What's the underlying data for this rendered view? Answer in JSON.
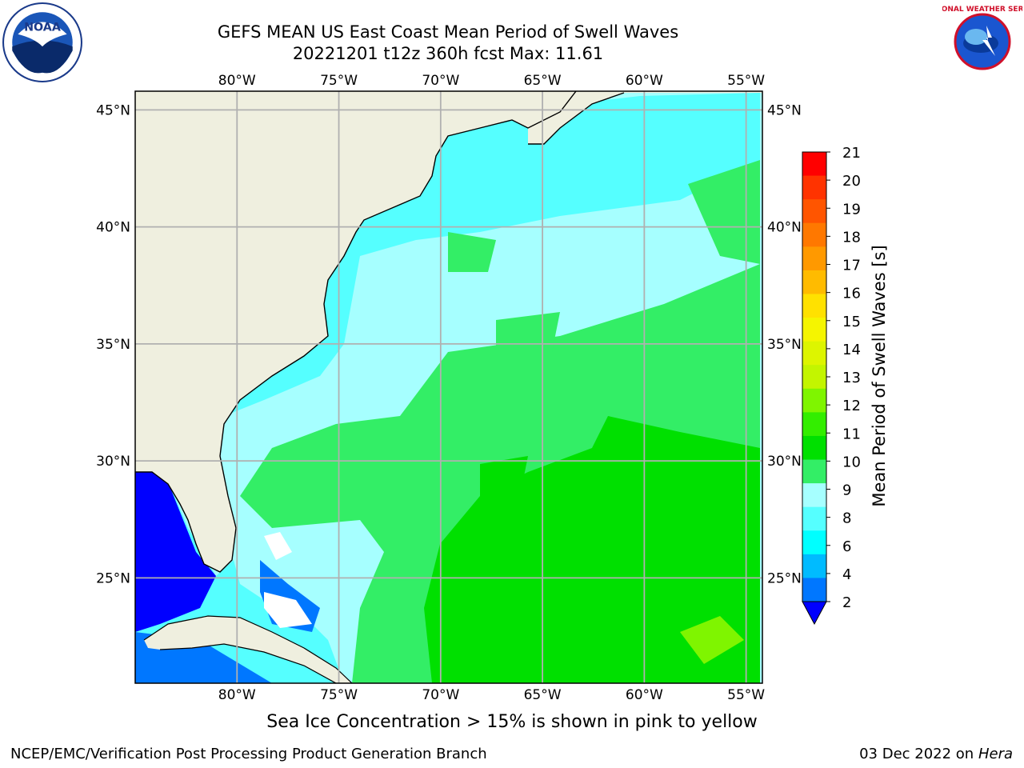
{
  "header": {
    "title_line1": "GEFS MEAN US East Coast Mean Period of Swell Waves",
    "title_line2": "20221201 t12z 360h fcst   Max: 11.61"
  },
  "logos": {
    "left": "noaa-logo",
    "right": "national-weather-service-logo",
    "left_text": "NOAA",
    "right_text": "NATIONAL WEATHER SERVICE"
  },
  "map": {
    "projection": "lat-lon",
    "lon_range": [
      -85,
      -54.2
    ],
    "lat_range": [
      20.5,
      45.8
    ],
    "lon_ticks": [
      "80°W",
      "75°W",
      "70°W",
      "65°W",
      "60°W",
      "55°W"
    ],
    "lat_ticks": [
      "45°N",
      "40°N",
      "35°N",
      "30°N",
      "25°N"
    ],
    "grid": true,
    "land_color": "#efefdf",
    "coast_color": "#000000"
  },
  "colorbar": {
    "label": "Mean Period of Swell Waves [s]",
    "ticks": [
      "21",
      "20",
      "19",
      "18",
      "17",
      "16",
      "15",
      "14",
      "13",
      "12",
      "11",
      "10",
      "9",
      "8",
      "6",
      "4",
      "2"
    ],
    "colors": [
      "#ff0000",
      "#ff3300",
      "#ff5500",
      "#ff7800",
      "#ff9900",
      "#ffbb00",
      "#ffe100",
      "#f5f500",
      "#ddf500",
      "#c3f500",
      "#7ff500",
      "#33ee00",
      "#00e000",
      "#33ee66",
      "#a6ffff",
      "#55ffff",
      "#00ffff",
      "#00bbff",
      "#0077ff"
    ],
    "under_color": "#0000ff"
  },
  "annotations": {
    "sea_ice_note": "Sea Ice Concentration > 15% is shown in pink to yellow"
  },
  "footer": {
    "left": "NCEP/EMC/Verification Post Processing Product Generation Branch",
    "right_date": "03 Dec 2022 on",
    "right_host": "Hera"
  }
}
